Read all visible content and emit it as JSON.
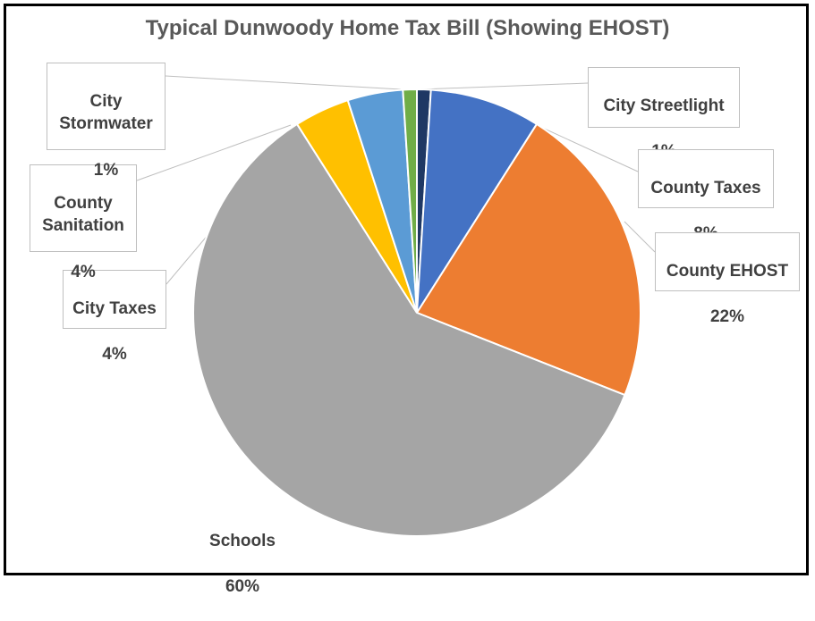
{
  "chart_data": {
    "type": "pie",
    "title": "Typical Dunwoody Home Tax Bill (Showing EHOST)",
    "slices": [
      {
        "name": "City Streetlight",
        "value": 1,
        "color": "#1f3864"
      },
      {
        "name": "County Taxes",
        "value": 8,
        "color": "#4472c4"
      },
      {
        "name": "County EHOST",
        "value": 22,
        "color": "#ed7d31"
      },
      {
        "name": "Schools",
        "value": 60,
        "color": "#a5a5a5"
      },
      {
        "name": "City Taxes",
        "value": 4,
        "color": "#ffc000"
      },
      {
        "name": "County Sanitation",
        "value": 4,
        "color": "#5b9bd5"
      },
      {
        "name": "City Stormwater",
        "value": 1,
        "color": "#70ad47"
      }
    ],
    "data_labels": {
      "streetlight": {
        "name": "City Streetlight",
        "pct": "1%"
      },
      "county_taxes": {
        "name": "County Taxes",
        "pct": "8%"
      },
      "county_ehost": {
        "name": "County EHOST",
        "pct": "22%"
      },
      "schools": {
        "name": "Schools",
        "pct": "60%"
      },
      "city_taxes": {
        "name": "City Taxes",
        "pct": "4%"
      },
      "sanitation": {
        "name": "County\nSanitation",
        "pct": "4%"
      },
      "stormwater": {
        "name": "City\nStormwater",
        "pct": "1%"
      }
    }
  }
}
